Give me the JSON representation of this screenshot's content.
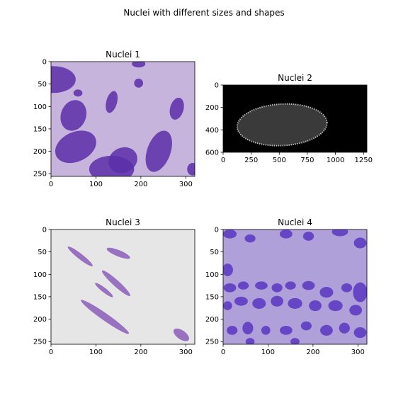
{
  "figure": {
    "suptitle": "Nuclei with different sizes and shapes"
  },
  "chart_data": [
    {
      "type": "image",
      "title": "Nuclei 1",
      "xlim": [
        0,
        320
      ],
      "ylim": [
        256,
        0
      ],
      "xticks": [
        0,
        100,
        200,
        300
      ],
      "yticks": [
        0,
        50,
        100,
        150,
        200,
        250
      ],
      "background": "#c6b4dd",
      "nucleus_color": "#5a2ea8",
      "nuclei": [
        {
          "cx": 5,
          "cy": 40,
          "rx": 50,
          "ry": 30,
          "angle": 0
        },
        {
          "cx": 50,
          "cy": 120,
          "rx": 28,
          "ry": 35,
          "angle": 20
        },
        {
          "cx": 55,
          "cy": 190,
          "rx": 48,
          "ry": 33,
          "angle": -25
        },
        {
          "cx": 135,
          "cy": 240,
          "rx": 50,
          "ry": 30,
          "angle": 0
        },
        {
          "cx": 160,
          "cy": 220,
          "rx": 33,
          "ry": 28,
          "angle": -25
        },
        {
          "cx": 240,
          "cy": 200,
          "rx": 26,
          "ry": 48,
          "angle": 20
        },
        {
          "cx": 280,
          "cy": 105,
          "rx": 15,
          "ry": 25,
          "angle": 15
        },
        {
          "cx": 135,
          "cy": 90,
          "rx": 12,
          "ry": 25,
          "angle": 15
        },
        {
          "cx": 195,
          "cy": 48,
          "rx": 10,
          "ry": 10,
          "angle": 0
        },
        {
          "cx": 195,
          "cy": 5,
          "rx": 15,
          "ry": 8,
          "angle": 0
        },
        {
          "cx": 315,
          "cy": 240,
          "rx": 12,
          "ry": 14,
          "angle": 0
        },
        {
          "cx": 60,
          "cy": 70,
          "rx": 10,
          "ry": 8,
          "angle": 0
        }
      ]
    },
    {
      "type": "image",
      "title": "Nuclei 2",
      "xlim": [
        0,
        1280
      ],
      "ylim": [
        600,
        0
      ],
      "xticks": [
        0,
        250,
        500,
        750,
        1000,
        1250
      ],
      "yticks": [
        0,
        200,
        400,
        600
      ],
      "background": "#000000",
      "nucleus_color": "#3a3a3a",
      "nuclei": [
        {
          "cx": 525,
          "cy": 355,
          "rx": 400,
          "ry": 185,
          "angle": -3
        }
      ]
    },
    {
      "type": "image",
      "title": "Nuclei 3",
      "xlim": [
        0,
        320
      ],
      "ylim": [
        256,
        0
      ],
      "xticks": [
        0,
        100,
        200,
        300
      ],
      "yticks": [
        0,
        50,
        100,
        150,
        200,
        250
      ],
      "background": "#e6e6e6",
      "nucleus_color": "#8a5cb8",
      "nuclei": [
        {
          "cx": 65,
          "cy": 60,
          "rx": 35,
          "ry": 6,
          "angle": 38
        },
        {
          "cx": 150,
          "cy": 53,
          "rx": 28,
          "ry": 7,
          "angle": 22
        },
        {
          "cx": 145,
          "cy": 120,
          "rx": 42,
          "ry": 7,
          "angle": 42
        },
        {
          "cx": 118,
          "cy": 135,
          "rx": 25,
          "ry": 5,
          "angle": 38
        },
        {
          "cx": 120,
          "cy": 195,
          "rx": 65,
          "ry": 8,
          "angle": 35
        },
        {
          "cx": 290,
          "cy": 235,
          "rx": 20,
          "ry": 10,
          "angle": 35
        }
      ]
    },
    {
      "type": "image",
      "title": "Nuclei 4",
      "xlim": [
        0,
        320
      ],
      "ylim": [
        256,
        0
      ],
      "xticks": [
        0,
        100,
        200,
        300
      ],
      "yticks": [
        0,
        50,
        100,
        150,
        200,
        250
      ],
      "background": "#b0a0da",
      "nucleus_color": "#5b36c2",
      "nuclei": [
        {
          "cx": 15,
          "cy": 10,
          "rx": 15,
          "ry": 10,
          "angle": 0
        },
        {
          "cx": 60,
          "cy": 20,
          "rx": 12,
          "ry": 9,
          "angle": 0
        },
        {
          "cx": 140,
          "cy": 10,
          "rx": 14,
          "ry": 10,
          "angle": 0
        },
        {
          "cx": 190,
          "cy": 15,
          "rx": 12,
          "ry": 10,
          "angle": 0
        },
        {
          "cx": 260,
          "cy": 5,
          "rx": 18,
          "ry": 10,
          "angle": 0
        },
        {
          "cx": 305,
          "cy": 30,
          "rx": 14,
          "ry": 12,
          "angle": 0
        },
        {
          "cx": 10,
          "cy": 90,
          "rx": 12,
          "ry": 14,
          "angle": 0
        },
        {
          "cx": 15,
          "cy": 130,
          "rx": 14,
          "ry": 10,
          "angle": 0
        },
        {
          "cx": 45,
          "cy": 125,
          "rx": 12,
          "ry": 9,
          "angle": 0
        },
        {
          "cx": 85,
          "cy": 125,
          "rx": 14,
          "ry": 9,
          "angle": 0
        },
        {
          "cx": 120,
          "cy": 130,
          "rx": 12,
          "ry": 10,
          "angle": 0
        },
        {
          "cx": 150,
          "cy": 125,
          "rx": 12,
          "ry": 9,
          "angle": 0
        },
        {
          "cx": 190,
          "cy": 125,
          "rx": 14,
          "ry": 10,
          "angle": 0
        },
        {
          "cx": 230,
          "cy": 140,
          "rx": 15,
          "ry": 12,
          "angle": 0
        },
        {
          "cx": 275,
          "cy": 130,
          "rx": 12,
          "ry": 10,
          "angle": 0
        },
        {
          "cx": 305,
          "cy": 140,
          "rx": 16,
          "ry": 22,
          "angle": 0
        },
        {
          "cx": 10,
          "cy": 170,
          "rx": 10,
          "ry": 10,
          "angle": 0
        },
        {
          "cx": 40,
          "cy": 160,
          "rx": 15,
          "ry": 10,
          "angle": 0
        },
        {
          "cx": 80,
          "cy": 165,
          "rx": 15,
          "ry": 12,
          "angle": 0
        },
        {
          "cx": 120,
          "cy": 160,
          "rx": 14,
          "ry": 12,
          "angle": 0
        },
        {
          "cx": 160,
          "cy": 165,
          "rx": 16,
          "ry": 12,
          "angle": 0
        },
        {
          "cx": 205,
          "cy": 170,
          "rx": 14,
          "ry": 12,
          "angle": 0
        },
        {
          "cx": 250,
          "cy": 170,
          "rx": 16,
          "ry": 12,
          "angle": 0
        },
        {
          "cx": 295,
          "cy": 180,
          "rx": 14,
          "ry": 12,
          "angle": 0
        },
        {
          "cx": 20,
          "cy": 225,
          "rx": 12,
          "ry": 10,
          "angle": 0
        },
        {
          "cx": 55,
          "cy": 220,
          "rx": 12,
          "ry": 14,
          "angle": 0
        },
        {
          "cx": 95,
          "cy": 225,
          "rx": 10,
          "ry": 10,
          "angle": 0
        },
        {
          "cx": 140,
          "cy": 225,
          "rx": 14,
          "ry": 10,
          "angle": 0
        },
        {
          "cx": 185,
          "cy": 215,
          "rx": 12,
          "ry": 10,
          "angle": 0
        },
        {
          "cx": 230,
          "cy": 225,
          "rx": 14,
          "ry": 12,
          "angle": 0
        },
        {
          "cx": 270,
          "cy": 220,
          "rx": 12,
          "ry": 12,
          "angle": 0
        },
        {
          "cx": 305,
          "cy": 230,
          "rx": 14,
          "ry": 12,
          "angle": 0
        },
        {
          "cx": 60,
          "cy": 250,
          "rx": 10,
          "ry": 8,
          "angle": 0
        },
        {
          "cx": 160,
          "cy": 250,
          "rx": 10,
          "ry": 8,
          "angle": 0
        }
      ]
    }
  ]
}
